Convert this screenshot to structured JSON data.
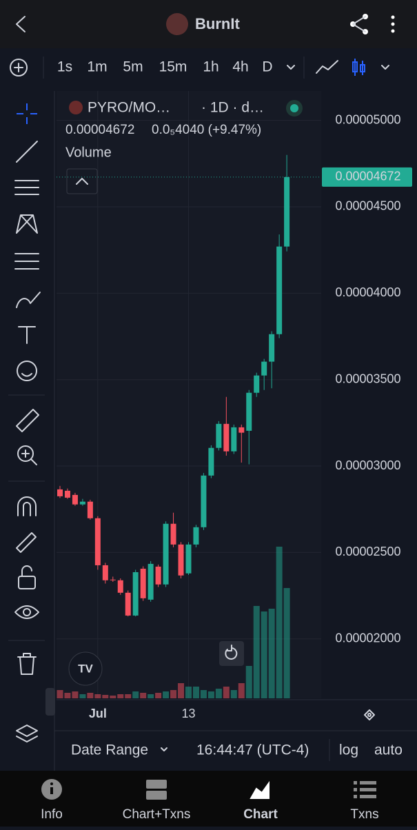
{
  "header": {
    "title": "BurnIt"
  },
  "timeframes": [
    "1s",
    "1m",
    "5m",
    "15m",
    "1h",
    "4h",
    "D"
  ],
  "legend": {
    "symbol": "PYRO/MO…",
    "interval": "· 1D · d…",
    "price": "0.00004672",
    "change": "0.0₅4040 (+9.47%)",
    "study": "Volume"
  },
  "chart_data": {
    "type": "candlestick",
    "categories": [
      null,
      null,
      null,
      null,
      null,
      "Jul",
      null,
      null,
      null,
      null,
      null,
      null,
      null,
      null,
      null,
      null,
      null,
      "13",
      null,
      null,
      null,
      null,
      null,
      null,
      null,
      null,
      null,
      null,
      null,
      null,
      null
    ],
    "open": [
      2.865e-05,
      2.857e-05,
      2.833e-05,
      2.778e-05,
      2.794e-05,
      2.698e-05,
      2.426e-05,
      2.343e-05,
      2.339e-05,
      2.267e-05,
      2.135e-05,
      2.406e-05,
      2.227e-05,
      2.418e-05,
      2.315e-05,
      2.666e-05,
      2.546e-05,
      2.379e-05,
      2.546e-05,
      2.646e-05,
      2.945e-05,
      3.105e-05,
      3.244e-05,
      3.085e-05,
      3.224e-05,
      3.204e-05,
      3.424e-05,
      3.524e-05,
      3.604e-05,
      3.763e-05,
      4.27e-05
    ],
    "high": [
      2.885e-05,
      2.87e-05,
      2.845e-05,
      2.81e-05,
      2.805e-05,
      2.71e-05,
      2.44e-05,
      2.36e-05,
      2.35e-05,
      2.28e-05,
      2.4e-05,
      2.42e-05,
      2.45e-05,
      2.43e-05,
      2.68e-05,
      2.73e-05,
      2.56e-05,
      2.56e-05,
      2.66e-05,
      2.96e-05,
      3.12e-05,
      3.26e-05,
      3.4e-05,
      3.24e-05,
      3.24e-05,
      3.44e-05,
      3.54e-05,
      3.62e-05,
      3.78e-05,
      4.34e-05,
      4.8e-05
    ],
    "low": [
      2.815e-05,
      2.81e-05,
      2.77e-05,
      2.77e-05,
      2.69e-05,
      2.4e-05,
      2.32e-05,
      2.33e-05,
      2.255e-05,
      2.13e-05,
      2.13e-05,
      2.22e-05,
      2.215e-05,
      2.3e-05,
      2.3e-05,
      2.53e-05,
      2.35e-05,
      2.37e-05,
      2.53e-05,
      2.63e-05,
      2.93e-05,
      3.09e-05,
      3.06e-05,
      3.07e-05,
      3.02e-05,
      3.01e-05,
      3.4e-05,
      3.44e-05,
      3.45e-05,
      3.74e-05,
      4.242e-05
    ],
    "close": [
      2.825e-05,
      2.817e-05,
      2.778e-05,
      2.794e-05,
      2.698e-05,
      2.426e-05,
      2.339e-05,
      2.339e-05,
      2.267e-05,
      2.135e-05,
      2.386e-05,
      2.235e-05,
      2.434e-05,
      2.315e-05,
      2.666e-05,
      2.546e-05,
      2.367e-05,
      2.546e-05,
      2.646e-05,
      2.945e-05,
      3.105e-05,
      3.244e-05,
      3.085e-05,
      3.224e-05,
      3.193e-05,
      3.424e-05,
      3.524e-05,
      3.604e-05,
      3.763e-05,
      4.27e-05,
      4.672e-05
    ],
    "volume": [
      12,
      8,
      10,
      6,
      8,
      6,
      5,
      4,
      6,
      6,
      10,
      8,
      6,
      8,
      10,
      12,
      22,
      17,
      17,
      12,
      10,
      14,
      17,
      12,
      22,
      47,
      134,
      126,
      130,
      220,
      160
    ],
    "vlim": [
      0,
      300
    ],
    "up_color": "#22ab94",
    "down_color": "#f7525f",
    "ylim": [
      5.17e-05,
      1.656e-05
    ],
    "yticks": [
      {
        "value": 5e-05,
        "label": "0.00005000"
      },
      {
        "value": 4.5e-05,
        "label": "0.00004500"
      },
      {
        "value": 4e-05,
        "label": "0.00004000"
      },
      {
        "value": 3.5e-05,
        "label": "0.00003500"
      },
      {
        "value": 3e-05,
        "label": "0.00003000"
      },
      {
        "value": 2.5e-05,
        "label": "0.00002500"
      },
      {
        "value": 2e-05,
        "label": "0.00002000"
      }
    ],
    "last_price_label": "0.00004672",
    "grid": true
  },
  "footer": {
    "date_range": "Date Range",
    "time": "16:44:47 (UTC-4)",
    "log": "log",
    "auto": "auto"
  },
  "nav": [
    "Info",
    "Chart+Txns",
    "Chart",
    "Txns"
  ]
}
